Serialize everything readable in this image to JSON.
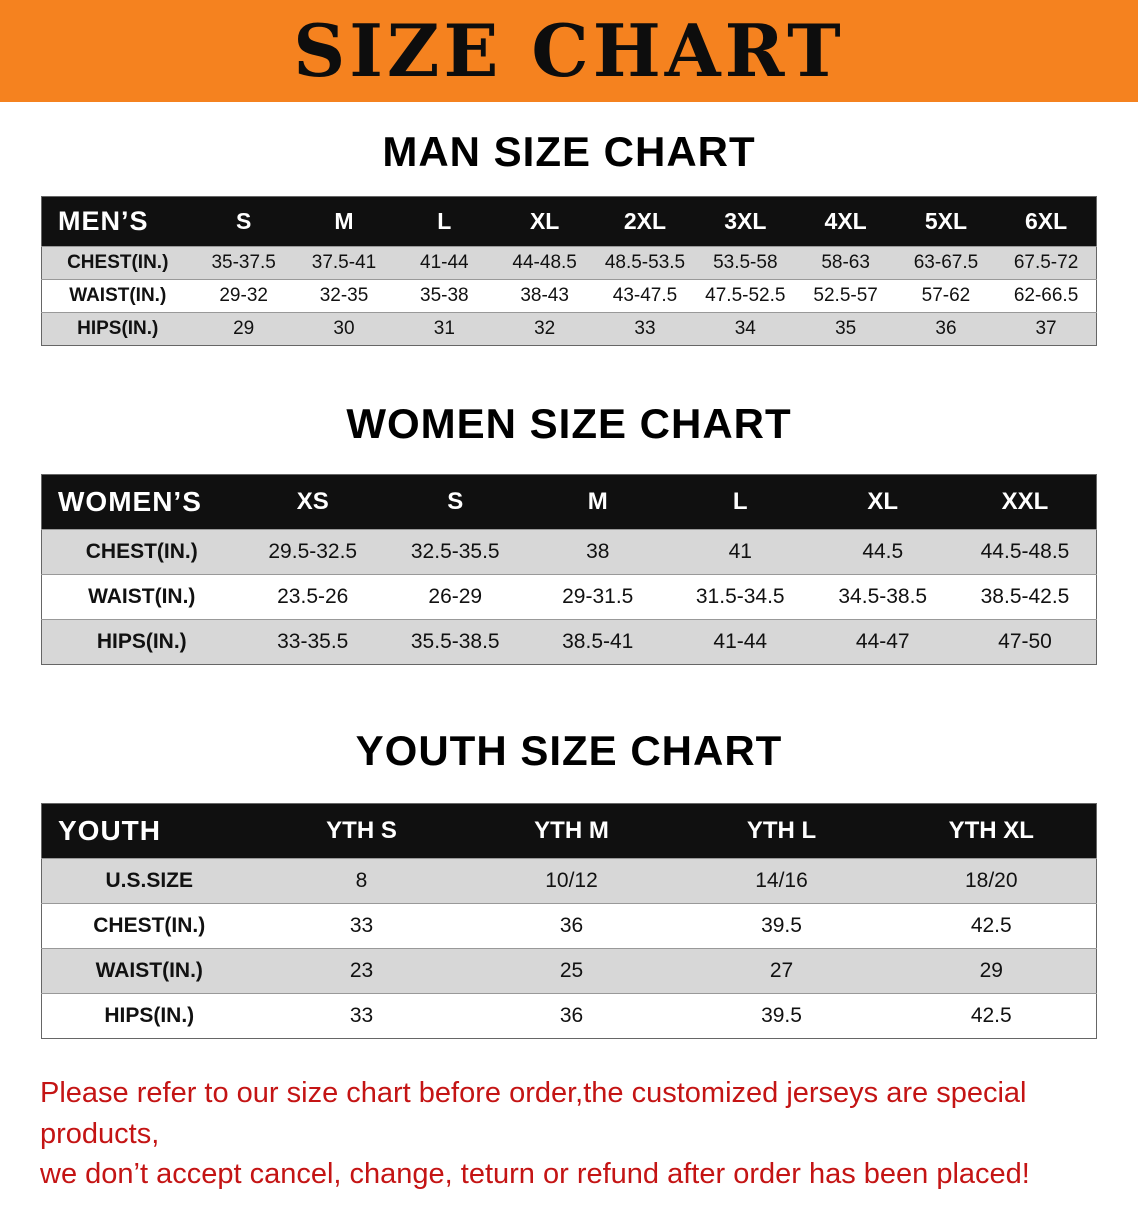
{
  "banner": {
    "title": "SIZE CHART"
  },
  "colors": {
    "banner_orange": "#f5821f",
    "header_black": "#101010",
    "row_gray": "#d7d7d7",
    "disclaimer_red": "#c41414"
  },
  "sections": [
    {
      "heading": "MAN SIZE CHART",
      "header_label": "MEN’S",
      "columns": [
        "S",
        "M",
        "L",
        "XL",
        "2XL",
        "3XL",
        "4XL",
        "5XL",
        "6XL"
      ],
      "rows": [
        {
          "label": "CHEST(IN.)",
          "values": [
            "35-37.5",
            "37.5-41",
            "41-44",
            "44-48.5",
            "48.5-53.5",
            "53.5-58",
            "58-63",
            "63-67.5",
            "67.5-72"
          ]
        },
        {
          "label": "WAIST(IN.)",
          "values": [
            "29-32",
            "32-35",
            "35-38",
            "38-43",
            "43-47.5",
            "47.5-52.5",
            "52.5-57",
            "57-62",
            "62-66.5"
          ]
        },
        {
          "label": "HIPS(IN.)",
          "values": [
            "29",
            "30",
            "31",
            "32",
            "33",
            "34",
            "35",
            "36",
            "37"
          ]
        }
      ]
    },
    {
      "heading": "WOMEN SIZE CHART",
      "header_label": "WOMEN’S",
      "columns": [
        "XS",
        "S",
        "M",
        "L",
        "XL",
        "XXL"
      ],
      "rows": [
        {
          "label": "CHEST(IN.)",
          "values": [
            "29.5-32.5",
            "32.5-35.5",
            "38",
            "41",
            "44.5",
            "44.5-48.5"
          ]
        },
        {
          "label": "WAIST(IN.)",
          "values": [
            "23.5-26",
            "26-29",
            "29-31.5",
            "31.5-34.5",
            "34.5-38.5",
            "38.5-42.5"
          ]
        },
        {
          "label": "HIPS(IN.)",
          "values": [
            "33-35.5",
            "35.5-38.5",
            "38.5-41",
            "41-44",
            "44-47",
            "47-50"
          ]
        }
      ]
    },
    {
      "heading": "YOUTH SIZE CHART",
      "header_label": "YOUTH",
      "columns": [
        "YTH S",
        "YTH M",
        "YTH L",
        "YTH XL"
      ],
      "rows": [
        {
          "label": "U.S.SIZE",
          "values": [
            "8",
            "10/12",
            "14/16",
            "18/20"
          ]
        },
        {
          "label": "CHEST(IN.)",
          "values": [
            "33",
            "36",
            "39.5",
            "42.5"
          ]
        },
        {
          "label": "WAIST(IN.)",
          "values": [
            "23",
            "25",
            "27",
            "29"
          ]
        },
        {
          "label": "HIPS(IN.)",
          "values": [
            "33",
            "36",
            "39.5",
            "42.5"
          ]
        }
      ]
    }
  ],
  "footer": {
    "line1": "Please refer to our size chart before order,the customized jerseys are special products,",
    "line2": "we don’t accept cancel, change, teturn or refund after order has been placed!"
  }
}
